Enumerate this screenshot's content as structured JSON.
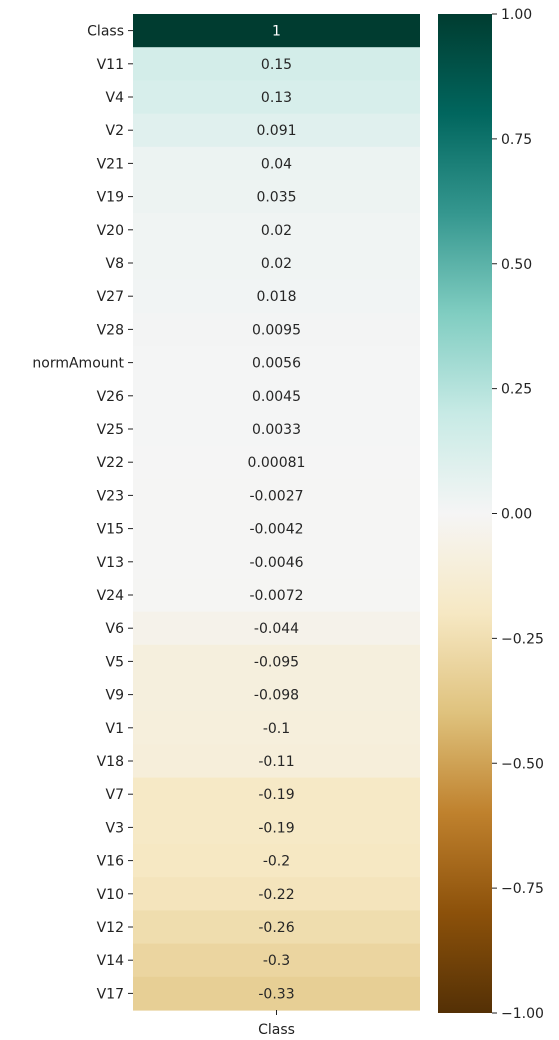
{
  "chart_data": {
    "type": "heatmap",
    "title": "",
    "x_categories": [
      "Class"
    ],
    "y_categories": [
      "Class",
      "V11",
      "V4",
      "V2",
      "V21",
      "V19",
      "V20",
      "V8",
      "V27",
      "V28",
      "normAmount",
      "V26",
      "V25",
      "V22",
      "V23",
      "V15",
      "V13",
      "V24",
      "V6",
      "V5",
      "V9",
      "V1",
      "V18",
      "V7",
      "V3",
      "V16",
      "V10",
      "V12",
      "V14",
      "V17"
    ],
    "values": [
      1,
      0.15,
      0.13,
      0.091,
      0.04,
      0.035,
      0.02,
      0.02,
      0.018,
      0.0095,
      0.0056,
      0.0045,
      0.0033,
      0.00081,
      -0.0027,
      -0.0042,
      -0.0046,
      -0.0072,
      -0.044,
      -0.095,
      -0.098,
      -0.1,
      -0.11,
      -0.19,
      -0.19,
      -0.2,
      -0.22,
      -0.26,
      -0.3,
      -0.33
    ],
    "cell_labels": [
      "1",
      "0.15",
      "0.13",
      "0.091",
      "0.04",
      "0.035",
      "0.02",
      "0.02",
      "0.018",
      "0.0095",
      "0.0056",
      "0.0045",
      "0.0033",
      "0.00081",
      "-0.0027",
      "-0.0042",
      "-0.0046",
      "-0.0072",
      "-0.044",
      "-0.095",
      "-0.098",
      "-0.1",
      "-0.11",
      "-0.19",
      "-0.19",
      "-0.2",
      "-0.22",
      "-0.26",
      "-0.3",
      "-0.33"
    ],
    "colormap": "BrBG",
    "vmin": -1,
    "vmax": 1,
    "colorbar_ticks": [
      1,
      0.75,
      0.5,
      0.25,
      0,
      -0.25,
      -0.5,
      -0.75,
      -1
    ],
    "colorbar_tick_labels": [
      "1.00",
      "0.75",
      "0.50",
      "0.25",
      "0.00",
      "−0.25",
      "−0.50",
      "−0.75",
      "−1.00"
    ],
    "xlabel": "",
    "ylabel": ""
  }
}
